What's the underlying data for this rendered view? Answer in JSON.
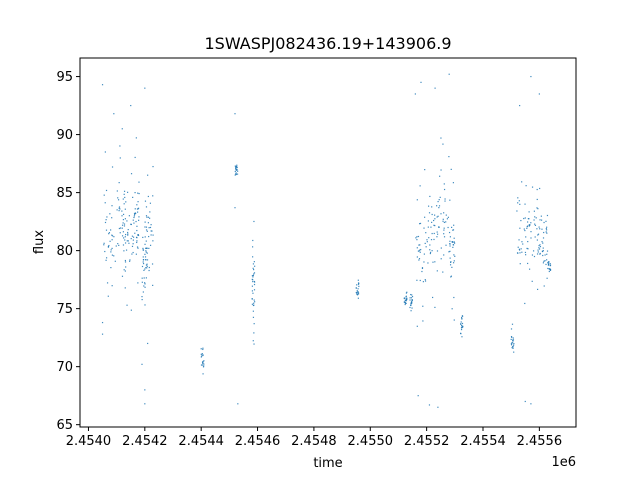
{
  "chart_data": {
    "type": "scatter",
    "title": "1SWASPJ082436.19+143906.9",
    "xlabel": "time",
    "ylabel": "flux",
    "x_offset_label": "1e6",
    "xlim": [
      2.45397,
      2.45573
    ],
    "ylim": [
      64.8,
      96.6
    ],
    "x_ticks": [
      2.454,
      2.4542,
      2.4544,
      2.4546,
      2.4548,
      2.455,
      2.4552,
      2.4554,
      2.4556
    ],
    "x_tick_labels": [
      "2.4540",
      "2.4542",
      "2.4544",
      "2.4546",
      "2.4548",
      "2.4550",
      "2.4552",
      "2.4554",
      "2.4556"
    ],
    "y_ticks": [
      65,
      70,
      75,
      80,
      85,
      90,
      95
    ],
    "y_tick_labels": [
      "65",
      "70",
      "75",
      "80",
      "85",
      "90",
      "95"
    ],
    "grid": false,
    "marker_color": "#1f77b4",
    "clusters": [
      {
        "x_start": 2.45405,
        "x_end": 2.4541,
        "y_center": 80.5,
        "y_spread": 1.8
      },
      {
        "x_start": 2.4541,
        "x_end": 2.45414,
        "y_center": 83.0,
        "y_spread": 2.0
      },
      {
        "x_start": 2.45412,
        "x_end": 2.45416,
        "y_center": 81.0,
        "y_spread": 1.8
      },
      {
        "x_start": 2.45416,
        "x_end": 2.45418,
        "y_center": 82.5,
        "y_spread": 2.0
      },
      {
        "x_start": 2.45419,
        "x_end": 2.45421,
        "y_center": 79.0,
        "y_spread": 2.0
      },
      {
        "x_start": 2.4542,
        "x_end": 2.45423,
        "y_center": 81.5,
        "y_spread": 2.2
      },
      {
        "x_start": 2.4544,
        "x_end": 2.45441,
        "y_center": 70.5,
        "y_spread": 1.2
      },
      {
        "x_start": 2.45452,
        "x_end": 2.45453,
        "y_center": 87.0,
        "y_spread": 0.5
      },
      {
        "x_start": 2.45458,
        "x_end": 2.45459,
        "y_center": 77.0,
        "y_spread": 2.0
      },
      {
        "x_start": 2.45495,
        "x_end": 2.45496,
        "y_center": 76.8,
        "y_spread": 0.7
      },
      {
        "x_start": 2.45512,
        "x_end": 2.45513,
        "y_center": 75.8,
        "y_spread": 0.6
      },
      {
        "x_start": 2.45514,
        "x_end": 2.45515,
        "y_center": 75.5,
        "y_spread": 0.7
      },
      {
        "x_start": 2.45516,
        "x_end": 2.4552,
        "y_center": 80.0,
        "y_spread": 2.2
      },
      {
        "x_start": 2.4552,
        "x_end": 2.45524,
        "y_center": 81.5,
        "y_spread": 2.2
      },
      {
        "x_start": 2.45524,
        "x_end": 2.45528,
        "y_center": 83.0,
        "y_spread": 2.2
      },
      {
        "x_start": 2.45528,
        "x_end": 2.4553,
        "y_center": 80.5,
        "y_spread": 2.0
      },
      {
        "x_start": 2.45532,
        "x_end": 2.45533,
        "y_center": 73.5,
        "y_spread": 0.8
      },
      {
        "x_start": 2.4555,
        "x_end": 2.45551,
        "y_center": 72.0,
        "y_spread": 1.2
      },
      {
        "x_start": 2.45552,
        "x_end": 2.45556,
        "y_center": 81.0,
        "y_spread": 1.8
      },
      {
        "x_start": 2.45556,
        "x_end": 2.4556,
        "y_center": 81.5,
        "y_spread": 1.8
      },
      {
        "x_start": 2.4556,
        "x_end": 2.45563,
        "y_center": 80.5,
        "y_spread": 1.8
      },
      {
        "x_start": 2.45563,
        "x_end": 2.45564,
        "y_center": 78.5,
        "y_spread": 0.5
      }
    ],
    "outliers": [
      {
        "x": 2.45405,
        "y": 94.3
      },
      {
        "x": 2.45406,
        "y": 88.5
      },
      {
        "x": 2.45409,
        "y": 91.8
      },
      {
        "x": 2.45412,
        "y": 90.5
      },
      {
        "x": 2.45415,
        "y": 92.5
      },
      {
        "x": 2.4542,
        "y": 94.0
      },
      {
        "x": 2.45421,
        "y": 86.5
      },
      {
        "x": 2.45421,
        "y": 72.0
      },
      {
        "x": 2.45419,
        "y": 70.2
      },
      {
        "x": 2.4542,
        "y": 68.0
      },
      {
        "x": 2.4542,
        "y": 66.8
      },
      {
        "x": 2.45452,
        "y": 91.8
      },
      {
        "x": 2.45452,
        "y": 83.7
      },
      {
        "x": 2.45453,
        "y": 66.8
      },
      {
        "x": 2.45405,
        "y": 73.8
      },
      {
        "x": 2.45405,
        "y": 72.8
      },
      {
        "x": 2.45516,
        "y": 93.5
      },
      {
        "x": 2.45518,
        "y": 94.5
      },
      {
        "x": 2.45523,
        "y": 94.0
      },
      {
        "x": 2.45528,
        "y": 95.2
      },
      {
        "x": 2.45521,
        "y": 66.7
      },
      {
        "x": 2.45524,
        "y": 66.5
      },
      {
        "x": 2.45517,
        "y": 67.5
      },
      {
        "x": 2.45553,
        "y": 92.5
      },
      {
        "x": 2.45557,
        "y": 95.0
      },
      {
        "x": 2.4556,
        "y": 93.5
      },
      {
        "x": 2.45555,
        "y": 67.0
      },
      {
        "x": 2.45557,
        "y": 66.8
      }
    ]
  }
}
